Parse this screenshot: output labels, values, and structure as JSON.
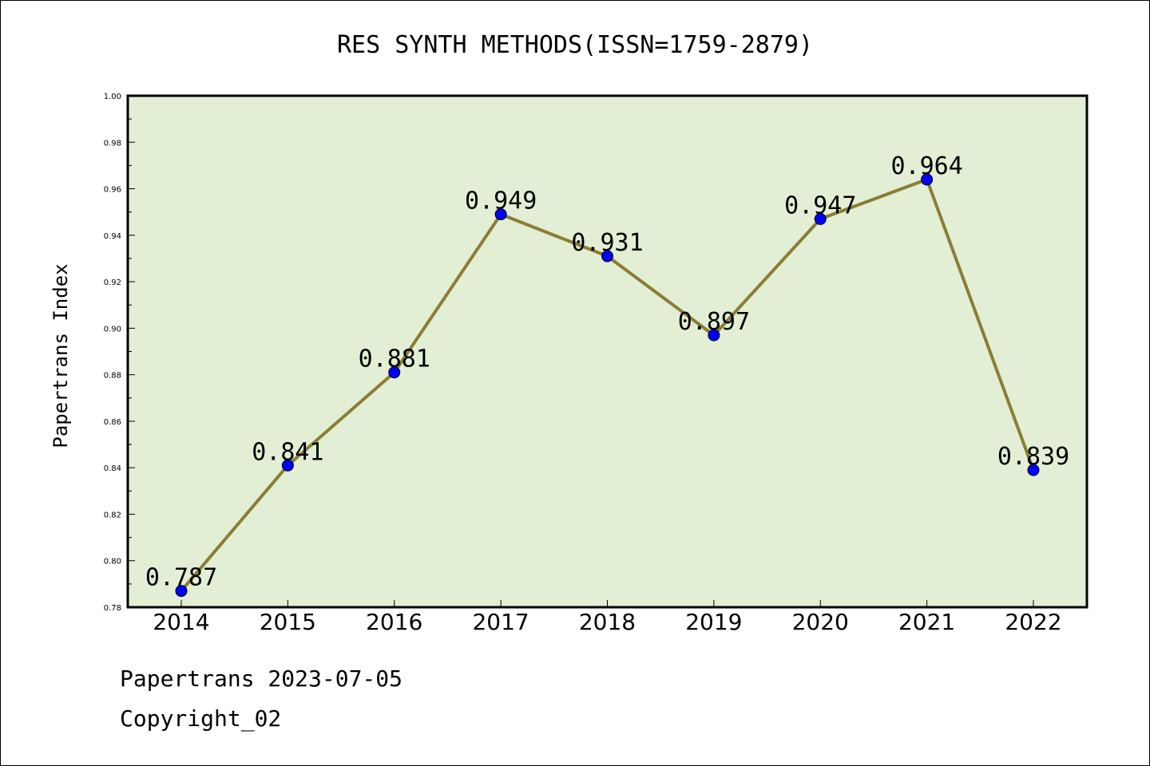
{
  "chart_data": {
    "type": "line",
    "title": "RES SYNTH METHODS(ISSN=1759-2879)",
    "xlabel": "",
    "ylabel": "Papertrans Index",
    "categories": [
      "2014",
      "2015",
      "2016",
      "2017",
      "2018",
      "2019",
      "2020",
      "2021",
      "2022"
    ],
    "series": [
      {
        "values": [
          0.787,
          0.841,
          0.881,
          0.949,
          0.931,
          0.897,
          0.947,
          0.964,
          0.839
        ],
        "labels": [
          "0.787",
          "0.841",
          "0.881",
          "0.949",
          "0.931",
          "0.897",
          "0.947",
          "0.964",
          "0.839"
        ]
      }
    ],
    "ylim": [
      0.78,
      1.0
    ],
    "yticks": [
      "0.78",
      "0.80",
      "0.82",
      "0.84",
      "0.86",
      "0.88",
      "0.90",
      "0.92",
      "0.94",
      "0.96",
      "0.98",
      "1.00"
    ],
    "grid": false,
    "legend": "none",
    "colors": {
      "plot_background": "#e2efd4",
      "line": "#8b7d35",
      "marker": "#0000ff"
    }
  },
  "footer": {
    "source": "Papertrans 2023-07-05",
    "copyright": "Copyright_02"
  }
}
